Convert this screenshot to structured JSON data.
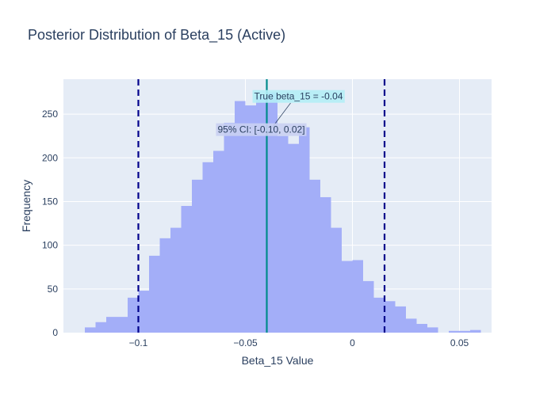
{
  "chart_data": {
    "type": "histogram",
    "title": "Posterior Distribution of Beta_15 (Active)",
    "xlabel": "Beta_15 Value",
    "ylabel": "Frequency",
    "xlim": [
      -0.135,
      0.065
    ],
    "ylim": [
      0,
      290
    ],
    "x_ticks": [
      -0.1,
      -0.05,
      0,
      0.05
    ],
    "x_tick_labels": [
      "−0.1",
      "−0.05",
      "0",
      "0.05"
    ],
    "y_ticks": [
      0,
      50,
      100,
      150,
      200,
      250
    ],
    "y_tick_labels": [
      "0",
      "50",
      "100",
      "150",
      "200",
      "250"
    ],
    "bin_width": 0.005,
    "bins": [
      {
        "x0": -0.125,
        "x1": -0.12,
        "y": 6
      },
      {
        "x0": -0.12,
        "x1": -0.115,
        "y": 12
      },
      {
        "x0": -0.115,
        "x1": -0.11,
        "y": 18
      },
      {
        "x0": -0.11,
        "x1": -0.105,
        "y": 18
      },
      {
        "x0": -0.105,
        "x1": -0.1,
        "y": 40
      },
      {
        "x0": -0.1,
        "x1": -0.095,
        "y": 48
      },
      {
        "x0": -0.095,
        "x1": -0.09,
        "y": 88
      },
      {
        "x0": -0.09,
        "x1": -0.085,
        "y": 108
      },
      {
        "x0": -0.085,
        "x1": -0.08,
        "y": 120
      },
      {
        "x0": -0.08,
        "x1": -0.075,
        "y": 145
      },
      {
        "x0": -0.075,
        "x1": -0.07,
        "y": 175
      },
      {
        "x0": -0.07,
        "x1": -0.065,
        "y": 195
      },
      {
        "x0": -0.065,
        "x1": -0.06,
        "y": 208
      },
      {
        "x0": -0.06,
        "x1": -0.055,
        "y": 240
      },
      {
        "x0": -0.055,
        "x1": -0.05,
        "y": 265
      },
      {
        "x0": -0.05,
        "x1": -0.045,
        "y": 260
      },
      {
        "x0": -0.045,
        "x1": -0.04,
        "y": 270
      },
      {
        "x0": -0.04,
        "x1": -0.035,
        "y": 275
      },
      {
        "x0": -0.035,
        "x1": -0.03,
        "y": 225
      },
      {
        "x0": -0.03,
        "x1": -0.025,
        "y": 216
      },
      {
        "x0": -0.025,
        "x1": -0.02,
        "y": 235
      },
      {
        "x0": -0.02,
        "x1": -0.015,
        "y": 175
      },
      {
        "x0": -0.015,
        "x1": -0.01,
        "y": 155
      },
      {
        "x0": -0.01,
        "x1": -0.005,
        "y": 120
      },
      {
        "x0": -0.005,
        "x1": 0,
        "y": 82
      },
      {
        "x0": 0,
        "x1": 0.005,
        "y": 83
      },
      {
        "x0": 0.005,
        "x1": 0.01,
        "y": 59
      },
      {
        "x0": 0.01,
        "x1": 0.015,
        "y": 40
      },
      {
        "x0": 0.015,
        "x1": 0.02,
        "y": 36
      },
      {
        "x0": 0.02,
        "x1": 0.025,
        "y": 30
      },
      {
        "x0": 0.025,
        "x1": 0.03,
        "y": 16
      },
      {
        "x0": 0.03,
        "x1": 0.035,
        "y": 10
      },
      {
        "x0": 0.035,
        "x1": 0.04,
        "y": 6
      },
      {
        "x0": 0.045,
        "x1": 0.05,
        "y": 2
      },
      {
        "x0": 0.05,
        "x1": 0.055,
        "y": 2
      },
      {
        "x0": 0.055,
        "x1": 0.06,
        "y": 3
      }
    ],
    "true_value": -0.04,
    "ci_lower": -0.1,
    "ci_upper": 0.015,
    "true_label": "True beta_15 = -0.04",
    "ci_label": "95% CI: [-0.10, 0.02]",
    "grid": true,
    "colors": {
      "bars": "#a3aef8",
      "plot_bg": "#e5ecf6",
      "grid": "#ffffff",
      "ci_lines": "#00008b",
      "true_line": "#008b8b",
      "true_label_bg": "#b4eef6",
      "ci_label_bg": "#c9d0f2",
      "text": "#2a3f5f"
    }
  }
}
